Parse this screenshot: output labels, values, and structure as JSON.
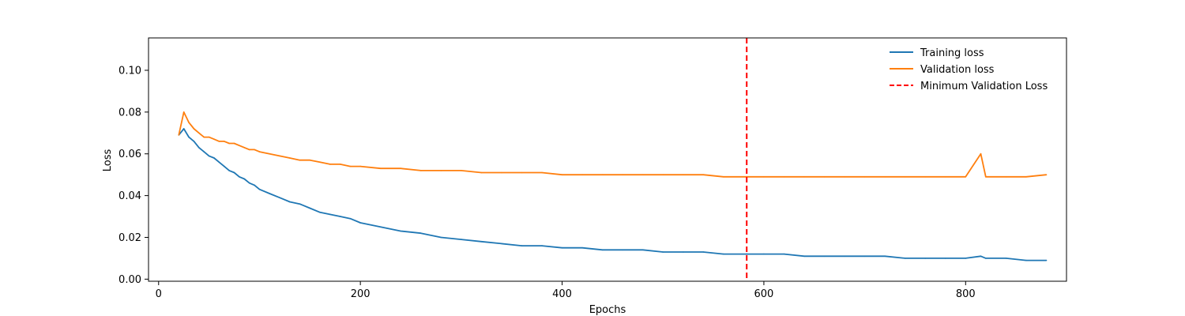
{
  "chart_data": {
    "type": "line",
    "title": "",
    "xlabel": "Epochs",
    "ylabel": "Loss",
    "xlim": [
      -10,
      900
    ],
    "ylim": [
      -0.001,
      0.1155
    ],
    "x_ticks": [
      0,
      200,
      400,
      600,
      800
    ],
    "x_tick_labels": [
      "0",
      "200",
      "400",
      "600",
      "800"
    ],
    "y_ticks": [
      0.0,
      0.02,
      0.04,
      0.06,
      0.08,
      0.1
    ],
    "y_tick_labels": [
      "0.00",
      "0.02",
      "0.04",
      "0.06",
      "0.08",
      "0.10"
    ],
    "grid": false,
    "legend_position": "top-right",
    "x": [
      20,
      25,
      30,
      35,
      40,
      45,
      50,
      55,
      60,
      65,
      70,
      75,
      80,
      85,
      90,
      95,
      100,
      110,
      120,
      130,
      140,
      150,
      160,
      170,
      180,
      190,
      200,
      220,
      240,
      260,
      280,
      300,
      320,
      340,
      360,
      380,
      400,
      420,
      440,
      460,
      480,
      500,
      520,
      540,
      560,
      583,
      600,
      620,
      640,
      660,
      680,
      700,
      720,
      740,
      760,
      780,
      800,
      815,
      820,
      840,
      860,
      880
    ],
    "series": [
      {
        "name": "Training loss",
        "color": "#1f77b4",
        "values": [
          0.069,
          0.072,
          0.068,
          0.066,
          0.063,
          0.061,
          0.059,
          0.058,
          0.056,
          0.054,
          0.052,
          0.051,
          0.049,
          0.048,
          0.046,
          0.045,
          0.043,
          0.041,
          0.039,
          0.037,
          0.036,
          0.034,
          0.032,
          0.031,
          0.03,
          0.029,
          0.027,
          0.025,
          0.023,
          0.022,
          0.02,
          0.019,
          0.018,
          0.017,
          0.016,
          0.016,
          0.015,
          0.015,
          0.014,
          0.014,
          0.014,
          0.013,
          0.013,
          0.013,
          0.012,
          0.012,
          0.012,
          0.012,
          0.011,
          0.011,
          0.011,
          0.011,
          0.011,
          0.01,
          0.01,
          0.01,
          0.01,
          0.011,
          0.01,
          0.01,
          0.009,
          0.009
        ]
      },
      {
        "name": "Validation loss",
        "color": "#ff7f0e",
        "values": [
          0.069,
          0.08,
          0.075,
          0.072,
          0.07,
          0.068,
          0.068,
          0.067,
          0.066,
          0.066,
          0.065,
          0.065,
          0.064,
          0.063,
          0.062,
          0.062,
          0.061,
          0.06,
          0.059,
          0.058,
          0.057,
          0.057,
          0.056,
          0.055,
          0.055,
          0.054,
          0.054,
          0.053,
          0.053,
          0.052,
          0.052,
          0.052,
          0.051,
          0.051,
          0.051,
          0.051,
          0.05,
          0.05,
          0.05,
          0.05,
          0.05,
          0.05,
          0.05,
          0.05,
          0.049,
          0.049,
          0.049,
          0.049,
          0.049,
          0.049,
          0.049,
          0.049,
          0.049,
          0.049,
          0.049,
          0.049,
          0.049,
          0.06,
          0.049,
          0.049,
          0.049,
          0.05
        ]
      }
    ],
    "vline": {
      "name": "Minimum Validation Loss",
      "x": 583,
      "color": "#ff0000",
      "style": "dashed"
    }
  }
}
